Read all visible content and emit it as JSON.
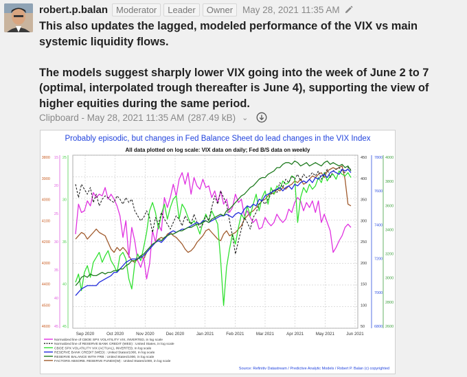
{
  "post": {
    "username": "robert.p.balan",
    "badges": [
      "Moderator",
      "Leader",
      "Owner"
    ],
    "timestamp": "May 28, 2021 11:35 AM",
    "paragraphs": [
      "This also updates the lagged, modeled performance of the VIX vs main systemic liquidity flows.",
      "The models suggest sharply lower VIX going into the week of June 2 to 7 (optimal, interpolated trough thereafter is June 4), supporting the view of higher equities during the same period."
    ],
    "attachment": {
      "label": "Clipboard - May 28, 2021 11:35 AM",
      "size": "(287.49 kB)"
    }
  },
  "chart_data": {
    "type": "line",
    "title": "Probably episodic, but changes in Fed Balance Sheet do lead changes in the VIX Index",
    "subtitle": "All data plotted on log scale: VIX data on daily; Fed B/S data on weekly",
    "x_ticks": [
      "Sep 2020",
      "Oct 2020",
      "Nov 2020",
      "Dec 2020",
      "Jan 2021",
      "Feb 2021",
      "Mar 2021",
      "Apr 2021",
      "May 2021",
      "Jun 2021"
    ],
    "left_axis_1": {
      "ticks": [
        "3800",
        "3900",
        "4000",
        "4100",
        "4200",
        "4300",
        "4400",
        "4500",
        "4600"
      ],
      "color": "#c85a1e",
      "inverted": true
    },
    "left_axis_2": {
      "ticks": [
        "15",
        "20",
        "25",
        "30",
        "35",
        "40",
        "45"
      ],
      "color": "#e060e0"
    },
    "left_axis_3": {
      "ticks": [
        "25",
        "30",
        "35",
        "40",
        "45"
      ],
      "color": "#50d050"
    },
    "right_axis_1": {
      "ticks": [
        "450",
        "400",
        "350",
        "300",
        "250",
        "200",
        "150",
        "100",
        "50"
      ],
      "color": "#333333"
    },
    "right_axis_2": {
      "ticks": [
        "7800",
        "7600",
        "7400",
        "7200",
        "7000",
        "6800"
      ],
      "color": "#3050e0"
    },
    "right_axis_3": {
      "ticks": [
        "4000",
        "3800",
        "3600",
        "3400",
        "3200",
        "3000",
        "2800",
        "2600"
      ],
      "color": "#40a040"
    },
    "series": [
      {
        "name": "Normalized line of CBOE SPX VOLATILITY VIX, INVERTED, in log scale",
        "color": "#e030e0",
        "style": "solid",
        "values": [
          5.5,
          7.3,
          6.8,
          6.9,
          7.5,
          7.2,
          8.0,
          7.7,
          7.9,
          7.8,
          8.3,
          7.6,
          7.9,
          7.6,
          7.2,
          6.6,
          5.3,
          6.3,
          4.1,
          5.9,
          5.1,
          3.9,
          3.5,
          4.1,
          2.8,
          3.7,
          5.7,
          5.0,
          6.1,
          5.7,
          7.7,
          7.1,
          7.7,
          8.5,
          7.8,
          8.8,
          9.2,
          8.5,
          9.2,
          7.9,
          8.9,
          8.4,
          8.2,
          8.8,
          8.3,
          8.4,
          7.7,
          8.1,
          7.4,
          8.1,
          7.3,
          7.6,
          6.8,
          7.1,
          7.9,
          7.4,
          7.6,
          6.6,
          6.9,
          6.5,
          6.2,
          6.4,
          5.8,
          5.9,
          6.5,
          6.2,
          6.0,
          6.2,
          6.7,
          6.4,
          6.2,
          6.4,
          7.0,
          6.8,
          7.4,
          7.7,
          7.5,
          6.9,
          7.4,
          7.1,
          7.5,
          6.8,
          7.5,
          6.2,
          6.7,
          6.2,
          5.7,
          4.4,
          4.7,
          5.1,
          5.4,
          5.9,
          6.1,
          5.9
        ]
      },
      {
        "name": "Normalized line of RESERVE BANK CREDIT (WED) : United States, in log scale",
        "color": "#222222",
        "style": "dashed",
        "values": [
          8.5,
          7.7,
          8.5,
          8.2,
          7.9,
          8.3,
          7.4,
          7.9,
          7.2,
          7.6,
          7.8,
          7.7,
          7.5,
          7.4,
          7.8,
          7.6,
          7.3,
          7.7,
          7.4,
          7.6,
          6.9,
          6.6,
          6.3,
          6.5,
          6.9,
          6.5,
          5.6,
          6.5,
          6.1,
          6.8,
          6.4,
          6.1,
          5.8,
          6.2,
          6.6,
          6.4,
          6.0,
          6.6,
          6.3,
          6.1,
          6.7,
          6.2,
          5.9,
          6.1,
          6.6,
          6.3,
          7.1,
          7.8,
          7.3,
          8.1,
          7.7,
          7.3,
          6.3,
          5.4,
          4.3,
          5.1,
          5.8,
          6.5,
          6.2,
          5.8,
          6.5,
          6.8,
          7.3,
          7.5,
          7.3,
          7.6,
          7.9,
          8.2,
          8.0,
          8.6,
          8.3,
          8.8,
          8.6,
          9.0,
          8.8,
          9.1,
          8.7,
          9.1,
          8.9,
          9.0,
          9.2,
          9.0,
          9.3,
          8.8,
          9.1,
          9.4,
          8.9,
          9.3,
          9.4,
          9.5,
          9.3,
          9.2,
          9.5,
          9.4
        ]
      },
      {
        "name": "CBOE SPX VOLATILITY VIX (ACTUAL), INVERTED, in log scale",
        "color": "#30e030",
        "style": "solid",
        "values": [
          2.6,
          3.1,
          2.1,
          3.2,
          3.6,
          2.9,
          3.8,
          4.1,
          4.4,
          3.8,
          4.2,
          4.5,
          3.9,
          3.6,
          3.2,
          4.2,
          4.4,
          4.0,
          2.8,
          2.2,
          3.7,
          4.3,
          3.9,
          4.7,
          5.6,
          6.9,
          7.4,
          6.8,
          5.8,
          6.7,
          7.3,
          6.4,
          7.1,
          7.6,
          7.8,
          6.4,
          7.3,
          7.0,
          6.5,
          6.1,
          6.3,
          6.0,
          5.5,
          6.2,
          6.7,
          6.3,
          6.9,
          6.5,
          6.1,
          3.9,
          1.2,
          3.5,
          4.6,
          5.5,
          4.9,
          5.9,
          6.7,
          6.4,
          7.2,
          6.6,
          7.3,
          7.9,
          6.9,
          7.7,
          8.1,
          7.3,
          8.3,
          7.9,
          8.4,
          8.2,
          8.7,
          8.5,
          8.6,
          9.0,
          8.9,
          6.2,
          7.7,
          8.3,
          8.0,
          8.5,
          8.2,
          8.4,
          8.9,
          8.6,
          9.2,
          8.7,
          9.0,
          9.1,
          8.8,
          9.3,
          9.1,
          9.0,
          9.2,
          8.9
        ]
      },
      {
        "name": "RESERVE BANK CREDIT (WED) : United States/1000, in log scale",
        "color": "#1e28dc",
        "style": "solid",
        "values": [
          1.8,
          2.0,
          2.2,
          2.3,
          2.4,
          2.4,
          2.4,
          2.4,
          2.6,
          2.7,
          2.8,
          2.9,
          3.0,
          3.2,
          3.2,
          3.4,
          3.6,
          3.8,
          3.9,
          4.0,
          4.0,
          4.0,
          4.1,
          4.2,
          4.4,
          4.6,
          4.8,
          5.0,
          5.1,
          5.0,
          5.2,
          5.4,
          5.6,
          5.7,
          5.6,
          5.7,
          5.8,
          5.8,
          5.9,
          6.0,
          6.1,
          6.2,
          6.1,
          6.3,
          6.3,
          6.2,
          6.3,
          6.4,
          6.5,
          6.6,
          6.6,
          6.7,
          6.6,
          6.5,
          6.7,
          6.8,
          6.7,
          7.0,
          7.2,
          7.1,
          7.3,
          7.2,
          7.6,
          7.5,
          7.8,
          7.9,
          8.0,
          8.1,
          8.2,
          8.3,
          8.1,
          8.3,
          8.4,
          8.2,
          8.5,
          8.4,
          8.6,
          8.7,
          8.6,
          8.8,
          8.6,
          8.9,
          8.8,
          9.0,
          9.1,
          8.9,
          9.2,
          9.3,
          9.2,
          9.1,
          9.4,
          9.3,
          9.4,
          9.2
        ]
      },
      {
        "name": "RESERVE BALANCE WITH FRB : United States/1000, in log scale",
        "color": "#1e7a1e",
        "style": "solid",
        "values": [
          2.4,
          2.6,
          2.9,
          3.0,
          2.9,
          3.1,
          3.0,
          3.0,
          3.1,
          3.2,
          3.1,
          3.2,
          3.2,
          3.3,
          3.3,
          3.4,
          3.4,
          3.6,
          3.7,
          3.9,
          3.9,
          4.0,
          4.2,
          4.3,
          4.5,
          4.7,
          4.9,
          5.0,
          5.2,
          5.1,
          5.3,
          5.4,
          5.5,
          5.5,
          5.6,
          5.7,
          5.7,
          5.8,
          5.9,
          5.9,
          6.0,
          6.1,
          6.1,
          6.2,
          6.3,
          6.2,
          6.4,
          6.5,
          6.6,
          6.7,
          6.6,
          6.9,
          7.0,
          7.2,
          7.4,
          7.6,
          7.8,
          7.9,
          8.1,
          8.3,
          8.4,
          8.6,
          8.8,
          8.9,
          8.9,
          9.1,
          9.2,
          9.3,
          9.5,
          9.5,
          9.7,
          9.8,
          9.8,
          9.7,
          9.9,
          9.8,
          9.6,
          9.7,
          9.8,
          9.6,
          9.7,
          9.8,
          9.7,
          9.6,
          9.8,
          9.9,
          9.7,
          9.8,
          9.7,
          9.6,
          9.7,
          9.5,
          9.6,
          9.3
        ]
      },
      {
        "name": "FACTORS ABSORB. RESERVE FUNDS(W) : United States/1000, in log scale",
        "color": "#a05a2c",
        "style": "solid",
        "values": [
          5.2,
          5.4,
          5.6,
          5.5,
          5.2,
          5.4,
          5.6,
          5.8,
          5.6,
          5.5,
          5.4,
          5.0,
          4.6,
          4.4,
          4.7,
          4.5,
          4.7,
          4.5,
          4.2,
          3.9,
          3.8,
          4.0,
          4.2,
          4.0,
          4.4,
          4.6,
          4.8,
          5.0,
          5.2,
          5.3,
          5.2,
          5.5,
          5.6,
          5.4,
          5.3,
          5.1,
          4.9,
          4.6,
          4.4,
          4.5,
          4.7,
          5.0,
          5.2,
          5.4,
          5.7,
          5.8,
          5.6,
          5.4,
          5.2,
          5.1,
          5.5,
          5.7,
          5.4,
          5.5,
          5.6,
          5.8,
          6.0,
          6.4,
          6.6,
          6.8,
          6.9,
          7.1,
          7.3,
          7.5,
          7.6,
          7.8,
          8.0,
          7.9,
          8.2,
          8.1,
          8.3,
          8.2,
          8.4,
          8.5,
          8.7,
          8.6,
          8.8,
          8.5,
          8.6,
          8.8,
          9.0,
          8.9,
          9.1,
          9.2,
          8.9,
          9.3,
          9.4,
          9.5,
          9.4,
          9.5,
          9.6,
          8.8,
          7.3,
          7.2
        ]
      }
    ],
    "source": "Source: Refinitiv Datastream / Predictive Analytic Models / Robert P. Balan (c) copyrighted"
  }
}
